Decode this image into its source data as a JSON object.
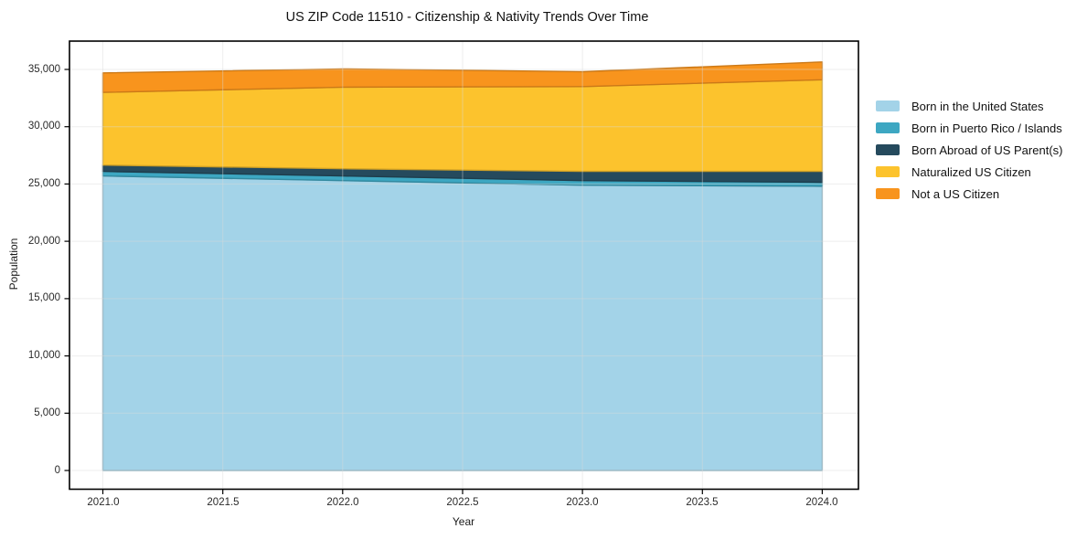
{
  "chart_data": {
    "type": "area",
    "stacked": true,
    "title": "US ZIP Code 11510 - Citizenship & Nativity Trends Over Time",
    "xlabel": "Year",
    "ylabel": "Population",
    "x": [
      2021,
      2022,
      2023,
      2024
    ],
    "series": [
      {
        "name": "Born in the United States",
        "color": "#a3d3e8",
        "values": [
          25700,
          25300,
          24900,
          24800
        ]
      },
      {
        "name": "Born in Puerto Rico / Islands",
        "color": "#3da7c2",
        "values": [
          400,
          400,
          400,
          350
        ]
      },
      {
        "name": "Born Abroad of US Parent(s)",
        "color": "#254a5d",
        "values": [
          550,
          630,
          800,
          950
        ]
      },
      {
        "name": "Naturalized US Citizen",
        "color": "#fcc32d",
        "values": [
          6350,
          7120,
          7400,
          8000
        ]
      },
      {
        "name": "Not a US Citizen",
        "color": "#f8941d",
        "values": [
          1700,
          1600,
          1300,
          1550
        ]
      }
    ],
    "totals": [
      34700,
      35050,
      34800,
      35650
    ],
    "x_ticks": {
      "values": [
        2021.0,
        2021.5,
        2022.0,
        2022.5,
        2023.0,
        2023.5,
        2024.0
      ],
      "labels": [
        "2021.0",
        "2021.5",
        "2022.0",
        "2022.5",
        "2023.0",
        "2023.5",
        "2024.0"
      ]
    },
    "y_ticks": {
      "values": [
        0,
        5000,
        10000,
        15000,
        20000,
        25000,
        30000,
        35000
      ],
      "labels": [
        "0",
        "5,000",
        "10,000",
        "15,000",
        "20,000",
        "25,000",
        "30,000",
        "35,000"
      ]
    },
    "xlim": [
      2020.86,
      2024.15
    ],
    "ylim": [
      -1650,
      37450
    ],
    "grid": true,
    "legend_position": "right",
    "axis_color": "#000000",
    "grid_color": "#d9d9d9",
    "background_color": "#ffffff"
  }
}
